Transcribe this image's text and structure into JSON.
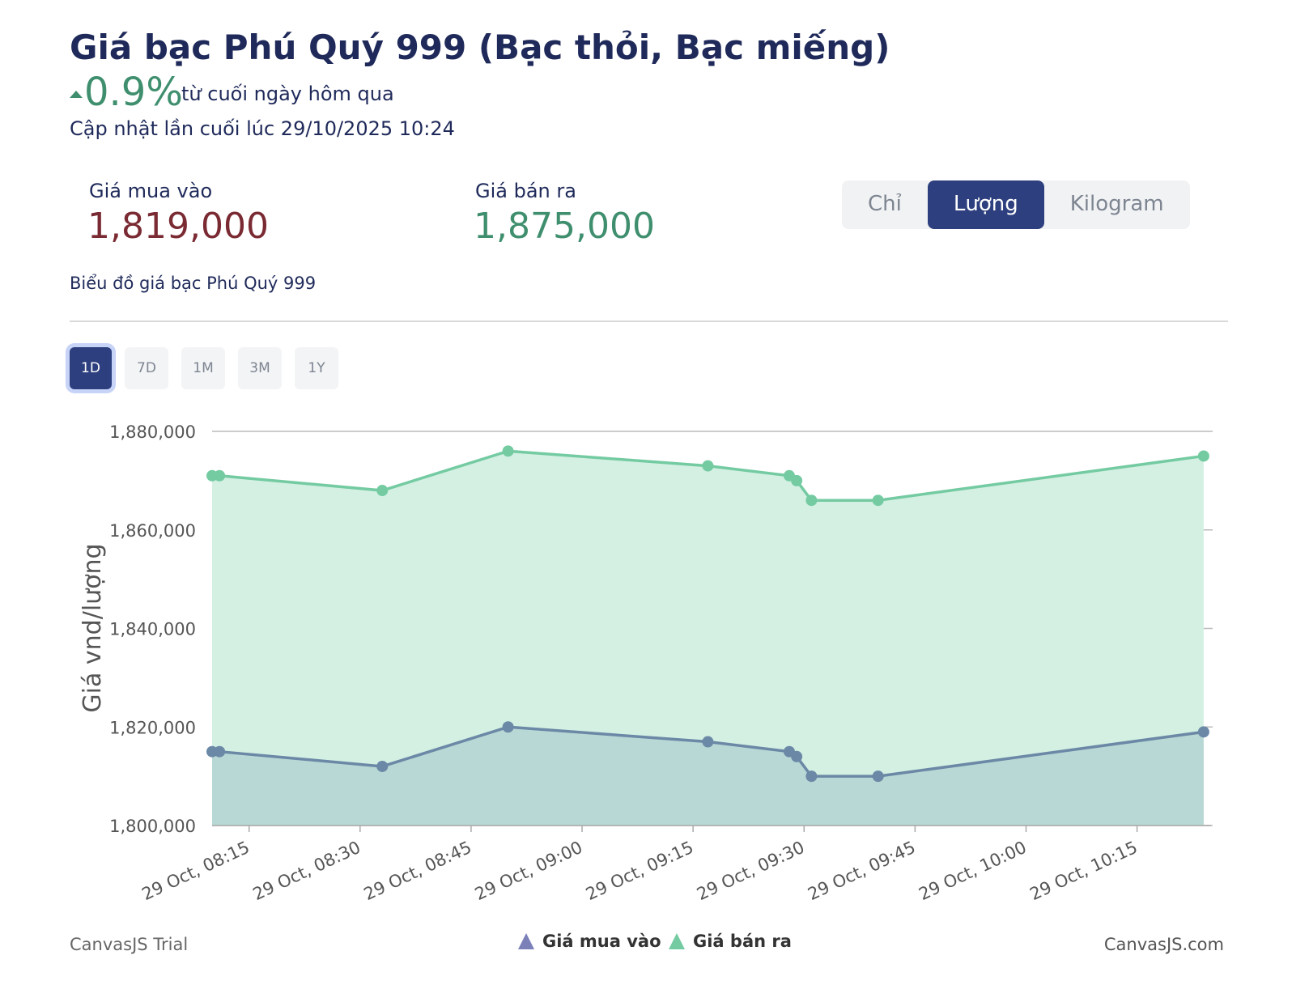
{
  "header": {
    "title": "Giá bạc Phú Quý 999 (Bạc thỏi, Bạc miếng)",
    "change": "0.9%",
    "change_note": "từ cuối ngày hôm qua",
    "updated": "Cập nhật lần cuối lúc 29/10/2025 10:24"
  },
  "prices": {
    "buy_label": "Giá mua vào",
    "buy_value": "1,819,000",
    "sell_label": "Giá bán ra",
    "sell_value": "1,875,000"
  },
  "unit_tabs": {
    "items": [
      "Chỉ",
      "Lượng",
      "Kilogram"
    ],
    "active": 1
  },
  "chart_caption": "Biểu đồ giá bạc Phú Quý 999",
  "range_tabs": {
    "items": [
      "1D",
      "7D",
      "1M",
      "3M",
      "1Y"
    ],
    "active": 0
  },
  "footer": {
    "left": "CanvasJS Trial",
    "right": "CanvasJS.com"
  },
  "chart_data": {
    "type": "area",
    "y_label": "Giá vnd/lượng",
    "x": [
      "29 Oct, 08:10",
      "29 Oct, 08:11",
      "29 Oct, 08:33",
      "29 Oct, 08:50",
      "29 Oct, 09:17",
      "29 Oct, 09:28",
      "29 Oct, 09:29",
      "29 Oct, 09:31",
      "29 Oct, 09:40",
      "29 Oct, 10:24"
    ],
    "xlim": [
      "29 Oct, 08:10",
      "29 Oct, 10:25"
    ],
    "xticks": [
      "29 Oct, 08:15",
      "29 Oct, 08:30",
      "29 Oct, 08:45",
      "29 Oct, 09:00",
      "29 Oct, 09:15",
      "29 Oct, 09:30",
      "29 Oct, 09:45",
      "29 Oct, 10:00",
      "29 Oct, 10:15"
    ],
    "ylim": [
      1800000,
      1880000
    ],
    "yticks": [
      {
        "value": 1800000,
        "label": "1,800,000"
      },
      {
        "value": 1820000,
        "label": "1,820,000"
      },
      {
        "value": 1840000,
        "label": "1,840,000"
      },
      {
        "value": 1860000,
        "label": "1,860,000"
      },
      {
        "value": 1880000,
        "label": "1,880,000"
      }
    ],
    "grid": true,
    "series": [
      {
        "name": "Giá mua vào",
        "color": "#6b88a6",
        "fill": "#b5d5d3",
        "legend_color": "#7b80b8",
        "values": [
          1815000,
          1815000,
          1812000,
          1820000,
          1817000,
          1815000,
          1814000,
          1810000,
          1810000,
          1819000
        ]
      },
      {
        "name": "Giá bán ra",
        "color": "#74cba2",
        "fill": "#d3f0e3",
        "legend_color": "#74cba2",
        "values": [
          1871000,
          1871000,
          1868000,
          1876000,
          1873000,
          1871000,
          1870000,
          1866000,
          1866000,
          1875000
        ]
      }
    ]
  }
}
